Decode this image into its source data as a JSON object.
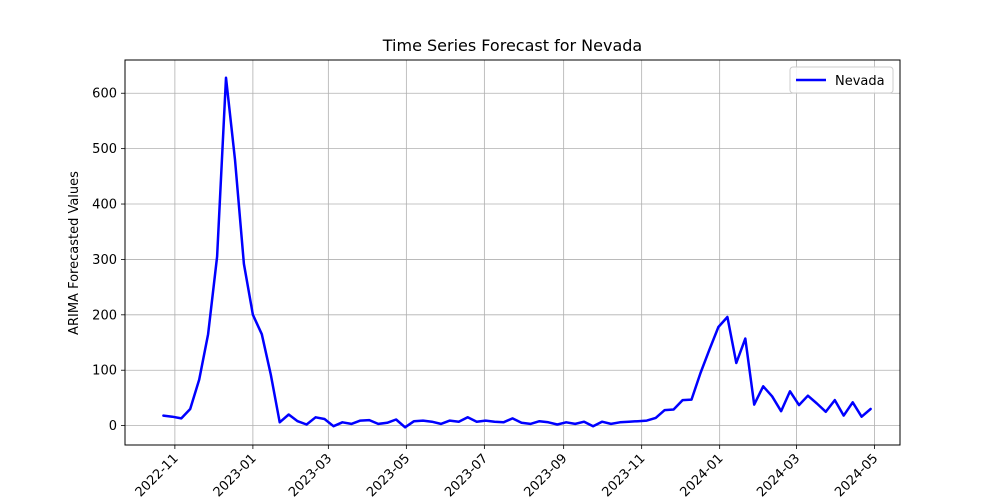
{
  "chart_data": {
    "type": "line",
    "title": "Time Series Forecast for Nevada",
    "xlabel": "",
    "ylabel": "ARIMA Forecasted Values",
    "x_ticks": [
      "2022-11",
      "2023-01",
      "2023-03",
      "2023-05",
      "2023-07",
      "2023-09",
      "2023-11",
      "2024-01",
      "2024-03",
      "2024-05"
    ],
    "y_ticks": [
      0,
      100,
      200,
      300,
      400,
      500,
      600
    ],
    "xlim": [
      "2022-09-23",
      "2024-05-21"
    ],
    "ylim": [
      -35,
      660
    ],
    "grid": true,
    "legend_position": "top-right",
    "series": [
      {
        "name": "Nevada",
        "color": "#0000ff",
        "x": [
          "2022-10-23",
          "2022-10-30",
          "2022-11-06",
          "2022-11-13",
          "2022-11-20",
          "2022-11-27",
          "2022-12-04",
          "2022-12-11",
          "2022-12-18",
          "2022-12-25",
          "2023-01-01",
          "2023-01-08",
          "2023-01-15",
          "2023-01-22",
          "2023-01-29",
          "2023-02-05",
          "2023-02-12",
          "2023-02-19",
          "2023-02-26",
          "2023-03-05",
          "2023-03-12",
          "2023-03-19",
          "2023-03-26",
          "2023-04-02",
          "2023-04-09",
          "2023-04-16",
          "2023-04-23",
          "2023-04-30",
          "2023-05-07",
          "2023-05-14",
          "2023-05-21",
          "2023-05-28",
          "2023-06-04",
          "2023-06-11",
          "2023-06-18",
          "2023-06-25",
          "2023-07-02",
          "2023-07-09",
          "2023-07-16",
          "2023-07-23",
          "2023-07-30",
          "2023-08-06",
          "2023-08-13",
          "2023-08-20",
          "2023-08-27",
          "2023-09-03",
          "2023-09-10",
          "2023-09-17",
          "2023-09-24",
          "2023-10-01",
          "2023-10-08",
          "2023-10-15",
          "2023-10-22",
          "2023-10-29",
          "2023-11-05",
          "2023-11-12",
          "2023-11-19",
          "2023-11-26",
          "2023-12-03",
          "2023-12-10",
          "2023-12-17",
          "2023-12-24",
          "2023-12-31",
          "2024-01-07",
          "2024-01-14",
          "2024-01-21",
          "2024-01-28",
          "2024-02-04",
          "2024-02-11",
          "2024-02-18",
          "2024-02-25",
          "2024-03-03",
          "2024-03-10",
          "2024-03-17",
          "2024-03-24",
          "2024-03-31",
          "2024-04-07",
          "2024-04-14",
          "2024-04-21",
          "2024-04-28"
        ],
        "y": [
          18,
          16,
          13,
          30,
          83,
          165,
          305,
          628,
          480,
          292,
          200,
          165,
          92,
          6,
          20,
          8,
          2,
          15,
          12,
          -1,
          6,
          3,
          9,
          10,
          3,
          5,
          11,
          -3,
          8,
          9,
          7,
          3,
          9,
          7,
          15,
          7,
          9,
          7,
          6,
          13,
          5,
          3,
          8,
          6,
          2,
          6,
          3,
          7,
          -1,
          7,
          3,
          6,
          7,
          8,
          9,
          14,
          28,
          29,
          46,
          47,
          95,
          137,
          178,
          196,
          113,
          157,
          38,
          71,
          53,
          26,
          62,
          37,
          54,
          40,
          25,
          46,
          18,
          42,
          16,
          30
        ]
      }
    ]
  }
}
